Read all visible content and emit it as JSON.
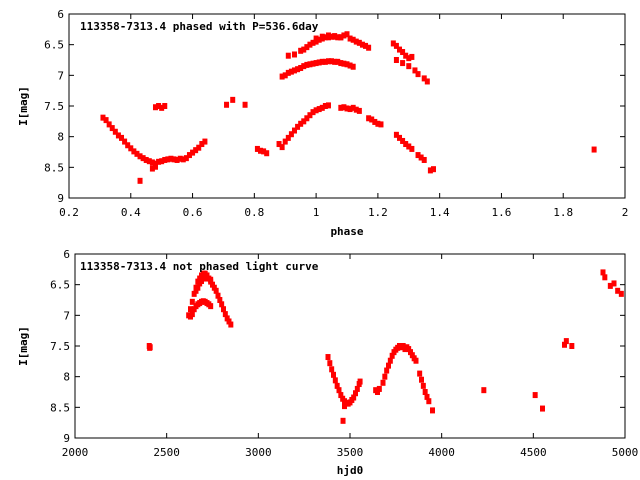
{
  "chart_data": [
    {
      "type": "scatter",
      "title": "113358-7313.4 phased with P=536.6day",
      "xlabel": "phase",
      "ylabel": "I[mag]",
      "xlim": [
        0.2,
        2
      ],
      "ylim": [
        9,
        6
      ],
      "y_inverted": true,
      "grid": false,
      "xticks": [
        "0.2",
        "0.4",
        "0.6",
        "0.8",
        "1",
        "1.2",
        "1.4",
        "1.6",
        "1.8",
        "2"
      ],
      "yticks": [
        "6",
        "6.5",
        "7",
        "7.5",
        "8",
        "8.5",
        "9"
      ],
      "color": "#ff0000",
      "series": [
        {
          "points": [
            [
              0.31,
              7.69
            ],
            [
              0.32,
              7.73
            ],
            [
              0.33,
              7.8
            ],
            [
              0.34,
              7.86
            ],
            [
              0.35,
              7.92
            ],
            [
              0.36,
              7.98
            ],
            [
              0.37,
              8.02
            ],
            [
              0.38,
              8.08
            ],
            [
              0.39,
              8.14
            ],
            [
              0.4,
              8.19
            ],
            [
              0.41,
              8.24
            ],
            [
              0.42,
              8.28
            ],
            [
              0.43,
              8.32
            ],
            [
              0.44,
              8.35
            ],
            [
              0.45,
              8.38
            ],
            [
              0.46,
              8.4
            ],
            [
              0.47,
              8.42
            ],
            [
              0.48,
              8.44
            ],
            [
              0.49,
              8.41
            ],
            [
              0.5,
              8.4
            ],
            [
              0.51,
              8.38
            ],
            [
              0.52,
              8.37
            ],
            [
              0.53,
              8.36
            ],
            [
              0.54,
              8.37
            ],
            [
              0.55,
              8.38
            ],
            [
              0.56,
              8.36
            ],
            [
              0.57,
              8.37
            ],
            [
              0.58,
              8.35
            ],
            [
              0.59,
              8.3
            ],
            [
              0.6,
              8.26
            ],
            [
              0.61,
              8.22
            ],
            [
              0.62,
              8.18
            ],
            [
              0.63,
              8.12
            ],
            [
              0.64,
              8.08
            ],
            [
              0.43,
              8.72
            ],
            [
              0.47,
              8.52
            ],
            [
              0.48,
              8.49
            ],
            [
              0.48,
              7.52
            ],
            [
              0.49,
              7.5
            ],
            [
              0.5,
              7.53
            ],
            [
              0.51,
              7.5
            ],
            [
              0.71,
              7.48
            ],
            [
              0.73,
              7.4
            ],
            [
              0.77,
              7.48
            ],
            [
              0.81,
              8.2
            ],
            [
              0.82,
              8.23
            ],
            [
              0.83,
              8.24
            ],
            [
              0.84,
              8.27
            ],
            [
              0.88,
              8.12
            ],
            [
              0.89,
              8.17
            ],
            [
              0.9,
              8.08
            ],
            [
              0.91,
              8.02
            ],
            [
              0.92,
              7.96
            ],
            [
              0.93,
              7.9
            ],
            [
              0.94,
              7.84
            ],
            [
              0.95,
              7.79
            ],
            [
              0.96,
              7.75
            ],
            [
              0.97,
              7.7
            ],
            [
              0.98,
              7.65
            ],
            [
              0.99,
              7.6
            ],
            [
              1.0,
              7.57
            ],
            [
              1.01,
              7.55
            ],
            [
              1.02,
              7.53
            ],
            [
              1.03,
              7.5
            ],
            [
              1.04,
              7.49
            ],
            [
              1.08,
              7.53
            ],
            [
              1.09,
              7.52
            ],
            [
              1.1,
              7.54
            ],
            [
              1.11,
              7.55
            ],
            [
              1.12,
              7.53
            ],
            [
              1.13,
              7.56
            ],
            [
              1.14,
              7.58
            ],
            [
              1.17,
              7.7
            ],
            [
              1.18,
              7.72
            ],
            [
              1.19,
              7.76
            ],
            [
              1.2,
              7.79
            ],
            [
              1.21,
              7.8
            ],
            [
              1.26,
              7.97
            ],
            [
              1.27,
              8.02
            ],
            [
              1.28,
              8.07
            ],
            [
              1.29,
              8.12
            ],
            [
              1.3,
              8.16
            ],
            [
              1.31,
              8.2
            ],
            [
              1.33,
              8.3
            ],
            [
              1.34,
              8.34
            ],
            [
              1.35,
              8.38
            ],
            [
              1.37,
              8.55
            ],
            [
              1.38,
              8.53
            ],
            [
              1.9,
              8.21
            ],
            [
              0.89,
              7.02
            ],
            [
              0.9,
              7.0
            ],
            [
              0.91,
              6.96
            ],
            [
              0.92,
              6.94
            ],
            [
              0.93,
              6.92
            ],
            [
              0.94,
              6.9
            ],
            [
              0.95,
              6.88
            ],
            [
              0.96,
              6.85
            ],
            [
              0.97,
              6.83
            ],
            [
              0.98,
              6.82
            ],
            [
              0.99,
              6.81
            ],
            [
              1.0,
              6.8
            ],
            [
              1.01,
              6.79
            ],
            [
              1.02,
              6.78
            ],
            [
              1.03,
              6.78
            ],
            [
              1.04,
              6.77
            ],
            [
              1.05,
              6.77
            ],
            [
              1.06,
              6.78
            ],
            [
              1.07,
              6.78
            ],
            [
              1.08,
              6.8
            ],
            [
              1.09,
              6.81
            ],
            [
              1.1,
              6.82
            ],
            [
              1.11,
              6.84
            ],
            [
              1.12,
              6.86
            ],
            [
              0.91,
              6.68
            ],
            [
              0.93,
              6.66
            ],
            [
              0.95,
              6.6
            ],
            [
              0.96,
              6.58
            ],
            [
              0.97,
              6.54
            ],
            [
              0.98,
              6.5
            ],
            [
              0.99,
              6.47
            ],
            [
              1.0,
              6.45
            ],
            [
              1.01,
              6.42
            ],
            [
              1.02,
              6.4
            ],
            [
              1.03,
              6.38
            ],
            [
              1.04,
              6.38
            ],
            [
              1.05,
              6.37
            ],
            [
              1.06,
              6.37
            ],
            [
              1.07,
              6.38
            ],
            [
              1.08,
              6.38
            ],
            [
              1.09,
              6.35
            ],
            [
              1.1,
              6.33
            ],
            [
              1.11,
              6.4
            ],
            [
              1.12,
              6.42
            ],
            [
              1.13,
              6.45
            ],
            [
              1.14,
              6.47
            ],
            [
              1.15,
              6.5
            ],
            [
              1.16,
              6.52
            ],
            [
              1.17,
              6.55
            ],
            [
              1.0,
              6.4
            ],
            [
              1.02,
              6.37
            ],
            [
              1.04,
              6.35
            ],
            [
              1.06,
              6.36
            ],
            [
              1.08,
              6.38
            ],
            [
              1.25,
              6.48
            ],
            [
              1.26,
              6.52
            ],
            [
              1.27,
              6.58
            ],
            [
              1.28,
              6.62
            ],
            [
              1.29,
              6.68
            ],
            [
              1.3,
              6.72
            ],
            [
              1.31,
              6.7
            ],
            [
              1.26,
              6.75
            ],
            [
              1.28,
              6.8
            ],
            [
              1.3,
              6.85
            ],
            [
              1.32,
              6.92
            ],
            [
              1.33,
              6.98
            ],
            [
              1.35,
              7.05
            ],
            [
              1.36,
              7.1
            ]
          ]
        }
      ]
    },
    {
      "type": "scatter",
      "title": "113358-7313.4 not phased light curve",
      "xlabel": "hjd0",
      "ylabel": "I[mag]",
      "xlim": [
        2000,
        5000
      ],
      "ylim": [
        9,
        6
      ],
      "y_inverted": true,
      "grid": false,
      "xticks": [
        "2000",
        "2500",
        "3000",
        "3500",
        "4000",
        "4500",
        "5000"
      ],
      "yticks": [
        "6",
        "6.5",
        "7",
        "7.5",
        "8",
        "8.5",
        "9"
      ],
      "color": "#ff0000",
      "series": [
        {
          "points": [
            [
              2405,
              7.5
            ],
            [
              2407,
              7.53
            ],
            [
              2410,
              7.52
            ],
            [
              2620,
              7.0
            ],
            [
              2630,
              6.9
            ],
            [
              2640,
              6.78
            ],
            [
              2650,
              6.65
            ],
            [
              2660,
              6.55
            ],
            [
              2670,
              6.45
            ],
            [
              2680,
              6.4
            ],
            [
              2690,
              6.35
            ],
            [
              2700,
              6.32
            ],
            [
              2710,
              6.32
            ],
            [
              2720,
              6.35
            ],
            [
              2730,
              6.4
            ],
            [
              2740,
              6.45
            ],
            [
              2750,
              6.5
            ],
            [
              2760,
              6.55
            ],
            [
              2770,
              6.6
            ],
            [
              2780,
              6.68
            ],
            [
              2790,
              6.75
            ],
            [
              2800,
              6.82
            ],
            [
              2810,
              6.9
            ],
            [
              2820,
              6.98
            ],
            [
              2830,
              7.05
            ],
            [
              2840,
              7.1
            ],
            [
              2850,
              7.15
            ],
            [
              2630,
              7.02
            ],
            [
              2640,
              6.98
            ],
            [
              2650,
              6.9
            ],
            [
              2660,
              6.85
            ],
            [
              2670,
              6.82
            ],
            [
              2680,
              6.8
            ],
            [
              2690,
              6.78
            ],
            [
              2700,
              6.77
            ],
            [
              2710,
              6.78
            ],
            [
              2720,
              6.8
            ],
            [
              2730,
              6.82
            ],
            [
              2740,
              6.85
            ],
            [
              2660,
              6.6
            ],
            [
              2670,
              6.55
            ],
            [
              2680,
              6.48
            ],
            [
              2690,
              6.44
            ],
            [
              2700,
              6.4
            ],
            [
              2720,
              6.4
            ],
            [
              2740,
              6.42
            ],
            [
              3380,
              7.68
            ],
            [
              3390,
              7.78
            ],
            [
              3400,
              7.88
            ],
            [
              3410,
              7.97
            ],
            [
              3420,
              8.06
            ],
            [
              3430,
              8.15
            ],
            [
              3440,
              8.22
            ],
            [
              3450,
              8.3
            ],
            [
              3460,
              8.36
            ],
            [
              3470,
              8.4
            ],
            [
              3480,
              8.43
            ],
            [
              3490,
              8.44
            ],
            [
              3500,
              8.42
            ],
            [
              3510,
              8.38
            ],
            [
              3520,
              8.34
            ],
            [
              3530,
              8.27
            ],
            [
              3540,
              8.2
            ],
            [
              3550,
              8.12
            ],
            [
              3555,
              8.08
            ],
            [
              3462,
              8.72
            ],
            [
              3470,
              8.48
            ],
            [
              3640,
              8.22
            ],
            [
              3650,
              8.25
            ],
            [
              3660,
              8.2
            ],
            [
              3680,
              8.1
            ],
            [
              3690,
              8.0
            ],
            [
              3700,
              7.9
            ],
            [
              3710,
              7.82
            ],
            [
              3720,
              7.74
            ],
            [
              3730,
              7.66
            ],
            [
              3740,
              7.6
            ],
            [
              3750,
              7.56
            ],
            [
              3760,
              7.53
            ],
            [
              3770,
              7.5
            ],
            [
              3780,
              7.52
            ],
            [
              3790,
              7.5
            ],
            [
              3800,
              7.55
            ],
            [
              3810,
              7.52
            ],
            [
              3820,
              7.55
            ],
            [
              3830,
              7.6
            ],
            [
              3840,
              7.65
            ],
            [
              3850,
              7.7
            ],
            [
              3860,
              7.74
            ],
            [
              3880,
              7.95
            ],
            [
              3890,
              8.05
            ],
            [
              3900,
              8.15
            ],
            [
              3910,
              8.25
            ],
            [
              3920,
              8.33
            ],
            [
              3930,
              8.4
            ],
            [
              3950,
              8.55
            ],
            [
              4230,
              8.22
            ],
            [
              4510,
              8.3
            ],
            [
              4550,
              8.52
            ],
            [
              4670,
              7.48
            ],
            [
              4680,
              7.42
            ],
            [
              4710,
              7.5
            ],
            [
              4880,
              6.3
            ],
            [
              4890,
              6.38
            ],
            [
              4920,
              6.52
            ],
            [
              4940,
              6.48
            ],
            [
              4960,
              6.6
            ],
            [
              4980,
              6.65
            ]
          ]
        }
      ]
    }
  ]
}
